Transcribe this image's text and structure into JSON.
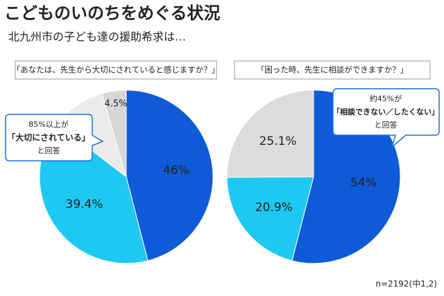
{
  "title": "こどものいのちをめぐる状況",
  "subtitle": "北九州市の子ども達の援助希求は…",
  "note": "n=2192(中1,2)",
  "chart_data": [
    {
      "type": "pie",
      "title": "「あなたは、先生から大切にされていると感じますか？」",
      "values": [
        46,
        39.4,
        10.1,
        4.5
      ],
      "value_labels": [
        "46%",
        "39.4%",
        null,
        "4.5%"
      ],
      "colors": [
        "#0f5ad6",
        "#1ec8f2",
        "#ebebeb",
        "#d6d6d6"
      ],
      "callout": [
        "85%以上が",
        "「大切にされている」",
        "と回答"
      ]
    },
    {
      "type": "pie",
      "title": "「困った時、先生に相談ができますか？」",
      "values": [
        54,
        20.9,
        25.1
      ],
      "value_labels": [
        "54%",
        "20.9%",
        "25.1%"
      ],
      "colors": [
        "#0f5ad6",
        "#1ec8f2",
        "#dcdcdc"
      ],
      "callout": [
        "約45%が",
        "「相談できない／したくない」",
        "と回答"
      ]
    }
  ]
}
